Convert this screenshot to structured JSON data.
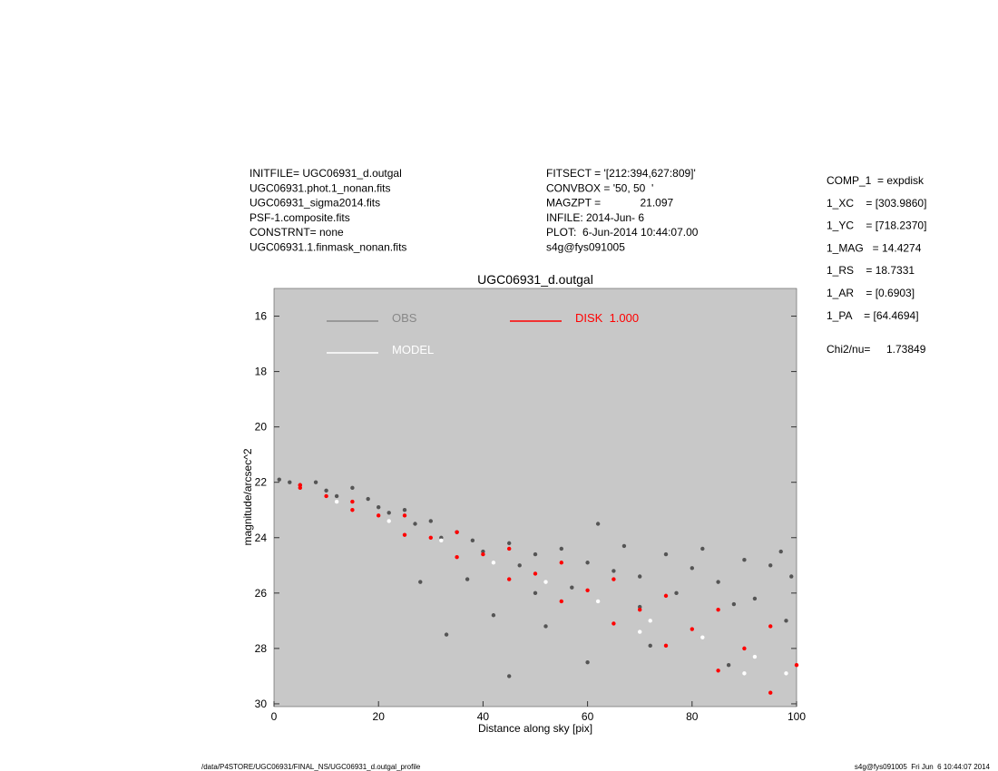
{
  "chart_data": {
    "type": "scatter",
    "title": "UGC06931_d.outgal",
    "xlabel": "Distance along sky [pix]",
    "ylabel": "magnitude/arcsec^2",
    "header_left": [
      "INITFILE= UGC06931_d.outgal",
      "UGC06931.phot.1_nonan.fits",
      "UGC06931_sigma2014.fits",
      "PSF-1.composite.fits",
      "CONSTRNT= none",
      "UGC06931.1.finmask_nonan.fits"
    ],
    "header_mid": [
      "FITSECT = '[212:394,627:809]'",
      "CONVBOX = '50, 50  '",
      "MAGZPT =             21.097",
      "INFILE: 2014-Jun- 6",
      "PLOT:  6-Jun-2014 10:44:07.00",
      "s4g@fys091005"
    ],
    "params": [
      "COMP_1  = expdisk",
      "1_XC    = [303.9860]",
      "1_YC    = [718.2370]",
      "1_MAG   = 14.4274",
      "1_RS    = 18.7331",
      "1_AR    = [0.6903]",
      "1_PA    = [64.4694]"
    ],
    "chi2_label": "Chi2/nu=",
    "chi2_value": "1.73849",
    "footer_left": "/data/P4STORE/UGC06931/FINAL_NS/UGC06931_d.outgal_profile",
    "footer_right": "s4g@fys091005  Fri Jun  6 10:44:07 2014",
    "xlim": [
      0,
      100
    ],
    "xticks": [
      0,
      20,
      40,
      60,
      80,
      100
    ],
    "ylim": [
      15,
      30.1
    ],
    "y_inverted": true,
    "yticks": [
      16,
      18,
      20,
      22,
      24,
      26,
      28,
      30
    ],
    "plot_background": "#c8c8c8",
    "series": [
      {
        "name": "OBS",
        "color": "#555555",
        "legend_color": "#888888",
        "x": [
          1,
          3,
          5,
          8,
          10,
          12,
          15,
          18,
          20,
          22,
          25,
          27,
          30,
          32,
          35,
          37,
          38,
          40,
          42,
          45,
          47,
          50,
          52,
          55,
          57,
          60,
          62,
          65,
          67,
          70,
          72,
          75,
          77,
          80,
          82,
          85,
          87,
          90,
          92,
          95,
          97,
          99,
          33,
          45,
          60,
          28,
          50,
          70,
          88,
          98
        ],
        "values": [
          21.9,
          22.0,
          22.1,
          22.0,
          22.3,
          22.5,
          22.2,
          22.6,
          22.9,
          23.1,
          23.0,
          23.5,
          23.4,
          24.0,
          23.8,
          25.5,
          24.1,
          24.5,
          26.8,
          24.2,
          25.0,
          24.6,
          27.2,
          24.4,
          25.8,
          24.9,
          23.5,
          25.2,
          24.3,
          25.4,
          27.9,
          24.6,
          26.0,
          25.1,
          24.4,
          25.6,
          28.6,
          24.8,
          26.2,
          25.0,
          24.5,
          25.4,
          27.5,
          29.0,
          28.5,
          25.6,
          26.0,
          26.5,
          26.4,
          27.0
        ]
      },
      {
        "name": "MODEL",
        "color": "#ffffff",
        "legend_color": "#ffffff",
        "x": [
          12,
          22,
          32,
          42,
          52,
          62,
          72,
          82,
          92,
          98,
          70,
          90
        ],
        "values": [
          22.7,
          23.4,
          24.1,
          24.9,
          25.6,
          26.3,
          27.0,
          27.6,
          28.3,
          28.9,
          27.4,
          28.9
        ]
      },
      {
        "name": "DISK  1.000",
        "color": "#ff0000",
        "legend_color": "#ff0000",
        "x": [
          5,
          15,
          25,
          35,
          45,
          55,
          65,
          75,
          85,
          95,
          5,
          15,
          25,
          35,
          45,
          55,
          65,
          75,
          85,
          95,
          10,
          20,
          30,
          40,
          50,
          60,
          70,
          80,
          90,
          100
        ],
        "values": [
          22.1,
          22.7,
          23.2,
          23.8,
          24.4,
          24.9,
          25.5,
          26.1,
          26.6,
          27.2,
          22.2,
          23.0,
          23.9,
          24.7,
          25.5,
          26.3,
          27.1,
          27.9,
          28.8,
          29.6,
          22.5,
          23.2,
          24.0,
          24.6,
          25.3,
          25.9,
          26.6,
          27.3,
          28.0,
          28.6
        ]
      }
    ]
  }
}
